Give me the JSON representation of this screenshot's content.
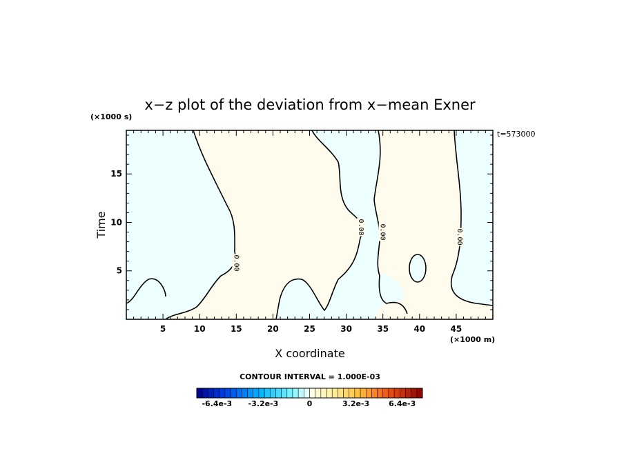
{
  "chart_data": {
    "type": "contour",
    "title": "x−z plot of the deviation from x−mean Exner",
    "xlabel": "X coordinate",
    "ylabel": "Time",
    "x_unit": "(×1000 m)",
    "y_unit": "(×1000 s)",
    "timestamp": "t=573000",
    "xlim": [
      0,
      50
    ],
    "ylim": [
      0,
      19.5
    ],
    "x_ticks": [
      5,
      10,
      15,
      20,
      25,
      30,
      35,
      40,
      45
    ],
    "y_ticks": [
      5,
      10,
      15
    ],
    "contour_interval_text": "CONTOUR INTERVAL = 1.000E-03",
    "contour_labels": [
      {
        "text": "0.00",
        "x": 15.0,
        "y": 5.8
      },
      {
        "text": "0.00",
        "x": 32.0,
        "y": 9.5
      },
      {
        "text": "0.00",
        "x": 35.0,
        "y": 9.0
      },
      {
        "text": "0.00",
        "x": 45.5,
        "y": 8.5
      }
    ],
    "colorbar": {
      "min": -0.0078,
      "max": 0.0078,
      "tick_labels": [
        "-6.4e-3",
        "-3.2e-3",
        "0",
        "3.2e-3",
        "6.4e-3"
      ],
      "tick_values": [
        -0.0064,
        -0.0032,
        0,
        0.0032,
        0.0064
      ],
      "low_color": "#00008b",
      "mid_low_color": "#00e5ff",
      "zero_color": "#ffffff",
      "mid_high_color": "#ffd700",
      "high_color": "#8b0000"
    },
    "fill_colors": {
      "negative": "#eeffff",
      "positive": "#fffcee"
    }
  }
}
